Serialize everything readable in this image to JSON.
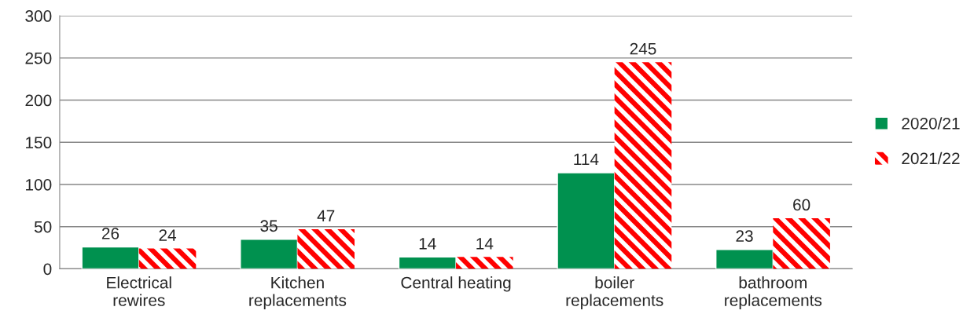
{
  "chart_data": {
    "type": "bar",
    "categories": [
      "Electrical\nrewires",
      "Kitchen\nreplacements",
      "Central heating",
      "boiler\nreplacements",
      "bathroom\nreplacements"
    ],
    "series": [
      {
        "name": "2020/21",
        "color": "#00914f",
        "values": [
          26,
          35,
          14,
          114,
          23
        ]
      },
      {
        "name": "2021/22",
        "color": "#ff0000",
        "values": [
          24,
          47,
          14,
          245,
          60
        ]
      }
    ],
    "ylim": [
      0,
      300
    ],
    "yticks": [
      0,
      50,
      100,
      150,
      200,
      250,
      300
    ],
    "grid": "y",
    "legend": "right",
    "data_labels": true
  }
}
